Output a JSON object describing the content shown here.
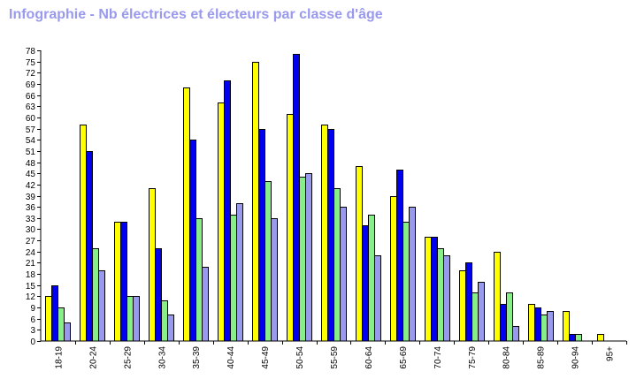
{
  "title": "Infographie - Nb électrices et électeurs par classe d'âge",
  "chart_data": {
    "type": "bar",
    "title": "Infographie - Nb électrices et électeurs par classe d'âge",
    "xlabel": "",
    "ylabel": "",
    "ylim": [
      0,
      78
    ],
    "y_ticks": [
      "0",
      "3",
      "6",
      "9",
      "12",
      "15",
      "18",
      "21",
      "24",
      "27",
      "30",
      "33",
      "36",
      "39",
      "42",
      "45",
      "48",
      "51",
      "54",
      "57",
      "60",
      "63",
      "66",
      "69",
      "72",
      "75",
      "78"
    ],
    "categories": [
      "18-19",
      "20-24",
      "25-29",
      "30-34",
      "35-39",
      "40-44",
      "45-49",
      "50-54",
      "55-59",
      "60-64",
      "65-69",
      "70-74",
      "75-79",
      "80-84",
      "85-89",
      "90-94",
      "95+"
    ],
    "series": [
      {
        "color": "#ffff00",
        "values": [
          12,
          58,
          32,
          41,
          68,
          64,
          75,
          61,
          58,
          47,
          39,
          28,
          19,
          24,
          10,
          8,
          2
        ]
      },
      {
        "color": "#0000ee",
        "values": [
          15,
          51,
          32,
          25,
          54,
          70,
          57,
          77,
          57,
          31,
          46,
          28,
          21,
          10,
          9,
          2,
          0
        ]
      },
      {
        "color": "#88ee88",
        "values": [
          9,
          25,
          12,
          11,
          33,
          34,
          43,
          44,
          41,
          34,
          32,
          25,
          13,
          13,
          7,
          2,
          0
        ]
      },
      {
        "color": "#9999ee",
        "values": [
          5,
          19,
          12,
          7,
          20,
          37,
          33,
          45,
          36,
          23,
          36,
          23,
          16,
          4,
          8,
          0,
          0
        ]
      }
    ],
    "grid": false,
    "legend": "none"
  }
}
